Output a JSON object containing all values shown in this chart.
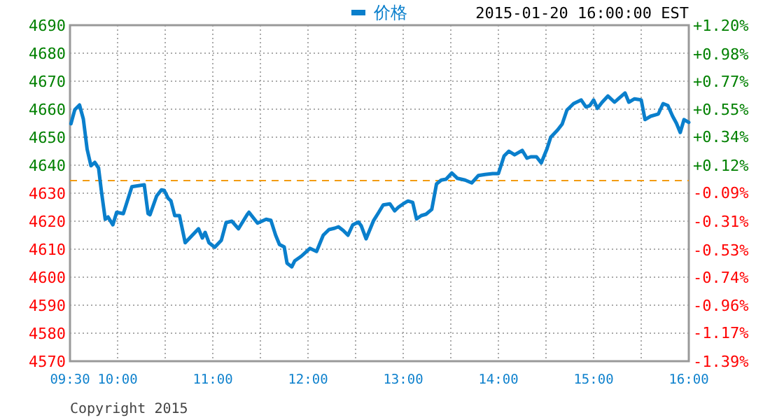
{
  "chart_data": {
    "type": "line",
    "annotations": [
      "2015-01-20 16:00:00 EST",
      "Copyright 2015"
    ],
    "legend": "top",
    "grid": true,
    "line_style": "solid",
    "xlim": [
      9.5,
      16
    ],
    "xticks": [
      {
        "value": 9.5,
        "label": "09:30"
      },
      {
        "value": 10,
        "label": "10:00"
      },
      {
        "value": 10.5,
        "label": null
      },
      {
        "value": 11,
        "label": "11:00"
      },
      {
        "value": 11.5,
        "label": null
      },
      {
        "value": 12,
        "label": "12:00"
      },
      {
        "value": 12.5,
        "label": null
      },
      {
        "value": 13,
        "label": "13:00"
      },
      {
        "value": 13.5,
        "label": null
      },
      {
        "value": 14,
        "label": "14:00"
      },
      {
        "value": 14.5,
        "label": null
      },
      {
        "value": 15,
        "label": "15:00"
      },
      {
        "value": 15.5,
        "label": null
      },
      {
        "value": 16,
        "label": "16:00"
      }
    ],
    "ylim": [
      4570,
      4690
    ],
    "yticks": [
      4570,
      4580,
      4590,
      4600,
      4610,
      4620,
      4630,
      4640,
      4650,
      4660,
      4670,
      4680,
      4690
    ],
    "y2lim": [
      -1.39,
      1.2
    ],
    "y2ticks": [
      {
        "value": -1.39,
        "label": "-1.39%"
      },
      {
        "value": -1.17,
        "label": "-1.17%"
      },
      {
        "value": -0.96,
        "label": "-0.96%"
      },
      {
        "value": -0.74,
        "label": "-0.74%"
      },
      {
        "value": -0.53,
        "label": "-0.53%"
      },
      {
        "value": -0.31,
        "label": "-0.31%"
      },
      {
        "value": -0.09,
        "label": "-0.09%"
      },
      {
        "value": 0.12,
        "label": "+0.12%"
      },
      {
        "value": 0.34,
        "label": "+0.34%"
      },
      {
        "value": 0.55,
        "label": "+0.55%"
      },
      {
        "value": 0.77,
        "label": "+0.77%"
      },
      {
        "value": 0.98,
        "label": "+0.98%"
      },
      {
        "value": 1.2,
        "label": "+1.20%"
      }
    ],
    "ref_lines": [
      {
        "axis": "y",
        "value": 4634.5,
        "color": "#f39c12",
        "line_style": "dashed"
      }
    ],
    "series": [
      {
        "name": "价格",
        "color": "#0a7fcc",
        "x": [
          9.51,
          9.55,
          9.6,
          9.64,
          9.68,
          9.72,
          9.76,
          9.8,
          9.83,
          9.87,
          9.9,
          9.95,
          9.99,
          10.06,
          10.15,
          10.28,
          10.32,
          10.34,
          10.41,
          10.46,
          10.49,
          10.53,
          10.56,
          10.6,
          10.65,
          10.71,
          10.78,
          10.85,
          10.89,
          10.92,
          10.96,
          11.02,
          11.09,
          11.14,
          11.2,
          11.27,
          11.36,
          11.38,
          11.47,
          11.56,
          11.61,
          11.66,
          11.7,
          11.75,
          11.78,
          11.83,
          11.86,
          11.93,
          12.02,
          12.09,
          12.16,
          12.22,
          12.28,
          12.32,
          12.37,
          12.42,
          12.47,
          12.53,
          12.56,
          12.61,
          12.69,
          12.74,
          12.79,
          12.86,
          12.91,
          12.95,
          13.0,
          13.05,
          13.1,
          13.14,
          13.19,
          13.24,
          13.3,
          13.35,
          13.4,
          13.45,
          13.51,
          13.57,
          13.65,
          13.72,
          13.79,
          13.86,
          13.94,
          14.0,
          14.06,
          14.11,
          14.17,
          14.25,
          14.3,
          14.34,
          14.4,
          14.45,
          14.51,
          14.55,
          14.62,
          14.67,
          14.72,
          14.79,
          14.87,
          14.92,
          14.96,
          15.0,
          15.04,
          15.09,
          15.15,
          15.22,
          15.26,
          15.33,
          15.37,
          15.43,
          15.5,
          15.54,
          15.6,
          15.68,
          15.73,
          15.78,
          15.83,
          15.87,
          15.91,
          15.95,
          16.0
        ],
        "values": [
          4654.8,
          4659.8,
          4661.5,
          4656.5,
          4645.7,
          4639.8,
          4641,
          4639,
          4630.7,
          4620.7,
          4621.5,
          4618.7,
          4623.2,
          4622.7,
          4632.3,
          4633,
          4622.7,
          4622.3,
          4629,
          4631.2,
          4631,
          4628.2,
          4627.3,
          4622,
          4622,
          4612.3,
          4614.8,
          4617.3,
          4614,
          4616,
          4612.3,
          4610.7,
          4613.2,
          4619.5,
          4620,
          4617.3,
          4622.3,
          4623.2,
          4619.3,
          4620.7,
          4620.3,
          4615,
          4611.7,
          4610.8,
          4605,
          4603.7,
          4605.8,
          4607.5,
          4610.3,
          4609.2,
          4615,
          4617,
          4617.5,
          4618,
          4616.7,
          4615,
          4618.7,
          4619.7,
          4618.3,
          4613.7,
          4620.3,
          4623,
          4625.8,
          4626.2,
          4623.7,
          4625,
          4626.2,
          4627.2,
          4626.7,
          4620.8,
          4622,
          4622.5,
          4624.2,
          4633.3,
          4634.7,
          4635,
          4637.2,
          4635.3,
          4634.7,
          4633.7,
          4636.3,
          4636.7,
          4637,
          4637,
          4643.3,
          4645,
          4643.7,
          4645.3,
          4642.5,
          4643,
          4643,
          4640.8,
          4645.8,
          4650,
          4652.5,
          4654.7,
          4659.7,
          4662,
          4663.3,
          4660.8,
          4661.3,
          4663.3,
          4660.3,
          4662.5,
          4664.7,
          4662.5,
          4663.7,
          4665.8,
          4662.5,
          4663.7,
          4663.3,
          4656.3,
          4657.5,
          4658.3,
          4662,
          4661.3,
          4657.5,
          4655,
          4651.7,
          4656.3,
          4655.3
        ]
      }
    ]
  }
}
